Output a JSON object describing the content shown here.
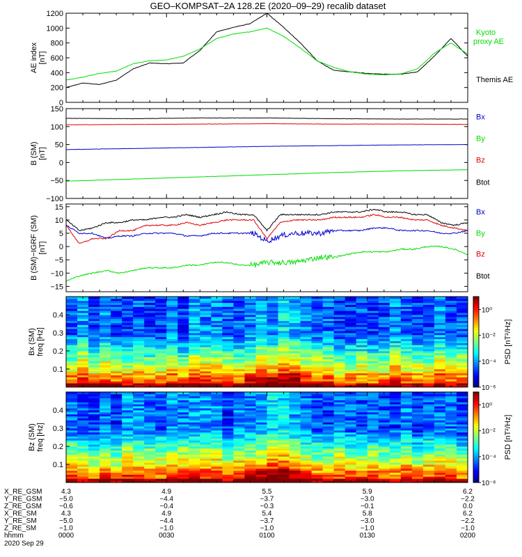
{
  "title": "GEO–KOMPSAT–2A 128.2E (2020–09–29) recalib dataset",
  "time_labels": [
    "0000",
    "0030",
    "0100",
    "0130",
    "0200"
  ],
  "date_label": "2020 Sep 29",
  "hhmm_label": "hhmm",
  "colors": {
    "black": "#000000",
    "green": "#00dd00",
    "blue": "#0000cc",
    "red": "#dd0000"
  },
  "chart_data": [
    {
      "type": "line",
      "ylabel": "AE index",
      "yunit": "[nT]",
      "ylim": [
        0,
        1200
      ],
      "yticks": [
        "0",
        "200",
        "400",
        "600",
        "800",
        "1000",
        "1200"
      ],
      "x": [
        0,
        5,
        10,
        15,
        20,
        25,
        30,
        35,
        40,
        45,
        50,
        55,
        60,
        65,
        70,
        75,
        80,
        85,
        90,
        95,
        100,
        105,
        110,
        115,
        120
      ],
      "series": [
        {
          "name": "Themis AE",
          "color": "#000000",
          "values": [
            200,
            260,
            240,
            300,
            450,
            530,
            520,
            530,
            700,
            950,
            1010,
            1060,
            1200,
            1010,
            800,
            560,
            430,
            410,
            390,
            380,
            380,
            410,
            620,
            860,
            620
          ]
        },
        {
          "name": "Kyoto proxy AE",
          "color": "#00dd00",
          "values": [
            300,
            340,
            390,
            420,
            520,
            560,
            570,
            620,
            720,
            860,
            920,
            950,
            1000,
            890,
            730,
            560,
            470,
            410,
            380,
            370,
            385,
            450,
            660,
            800,
            650
          ]
        }
      ],
      "legend": [
        {
          "text": "Kyoto",
          "color": "#00dd00"
        },
        {
          "text": "proxy AE",
          "color": "#00dd00"
        },
        {
          "text": "Themis AE",
          "color": "#000000"
        }
      ]
    },
    {
      "type": "line",
      "ylabel": "B (SM)",
      "yunit": "[nT]",
      "ylim": [
        -100,
        150
      ],
      "yticks": [
        "−100",
        "−50",
        "0",
        "50",
        "100",
        "150"
      ],
      "x": [
        0,
        20,
        40,
        60,
        80,
        100,
        120
      ],
      "series": [
        {
          "name": "Btot",
          "color": "#000000",
          "values": [
            123,
            122,
            124,
            124,
            122,
            121,
            121
          ]
        },
        {
          "name": "Bz",
          "color": "#dd0000",
          "values": [
            105,
            106,
            107,
            108,
            107,
            107,
            106
          ]
        },
        {
          "name": "By",
          "color": "#0000cc",
          "values": [
            36,
            39,
            42,
            45,
            47,
            49,
            50
          ]
        },
        {
          "name": "Bx",
          "color": "#00dd00",
          "values": [
            -52,
            -46,
            -40,
            -34,
            -28,
            -23,
            -20
          ]
        }
      ],
      "legend": [
        {
          "text": "Bx",
          "color": "#0000cc"
        },
        {
          "text": "By",
          "color": "#00dd00"
        },
        {
          "text": "Bz",
          "color": "#dd0000"
        },
        {
          "text": "Btot",
          "color": "#000000"
        }
      ]
    },
    {
      "type": "line",
      "ylabel": "B (SM)−IGRF (SM)",
      "yunit": "[nT]",
      "ylim": [
        -17,
        16
      ],
      "yticks": [
        "−15",
        "−10",
        "−5",
        "0",
        "5",
        "10",
        "15"
      ],
      "x": [
        0,
        4,
        8,
        12,
        16,
        20,
        24,
        28,
        32,
        36,
        40,
        44,
        48,
        52,
        56,
        60,
        64,
        68,
        72,
        76,
        80,
        84,
        88,
        92,
        96,
        100,
        104,
        108,
        112,
        116,
        120
      ],
      "series": [
        {
          "name": "Btot",
          "color": "#000000",
          "values": [
            10,
            6,
            7,
            9,
            9,
            10,
            10,
            11,
            11,
            12,
            11,
            12,
            13,
            12,
            12,
            6,
            12,
            12,
            12,
            12,
            13,
            13,
            13,
            14,
            13,
            13,
            12,
            12,
            9,
            8,
            9
          ]
        },
        {
          "name": "Bz",
          "color": "#dd0000",
          "values": [
            8,
            1,
            3,
            3,
            6,
            6,
            8,
            8,
            8,
            9,
            8,
            9,
            10,
            10,
            10,
            3,
            9,
            10,
            10,
            10,
            11,
            11,
            11,
            12,
            11,
            11,
            10,
            10,
            8,
            7,
            6
          ]
        },
        {
          "name": "By",
          "color": "#0000cc",
          "values": [
            8,
            5,
            5,
            3,
            4,
            4,
            5,
            5,
            5,
            4,
            4,
            5,
            5,
            5,
            5,
            2,
            4,
            5,
            5,
            5,
            6,
            6,
            6,
            7,
            7,
            6,
            6,
            6,
            5,
            5,
            6
          ]
        },
        {
          "name": "Bx",
          "color": "#00dd00",
          "values": [
            -13,
            -11,
            -10,
            -9,
            -10,
            -9,
            -8,
            -8,
            -8,
            -7,
            -7,
            -6,
            -6,
            -7,
            -7,
            -6,
            -6,
            -6,
            -5,
            -4,
            -4,
            -3,
            -2,
            -2,
            -2,
            -1,
            -1,
            0,
            0,
            -1,
            -3
          ]
        }
      ],
      "legend": [
        {
          "text": "Bx",
          "color": "#0000cc"
        },
        {
          "text": "By",
          "color": "#00dd00"
        },
        {
          "text": "Bz",
          "color": "#dd0000"
        },
        {
          "text": "Btot",
          "color": "#000000"
        }
      ]
    },
    {
      "type": "heatmap",
      "ylabel": "Bx (SM)",
      "yunit": "freq [Hz]",
      "ylim": [
        0,
        0.5
      ],
      "yticks": [
        "0.1",
        "0.2",
        "0.3",
        "0.4"
      ],
      "colorbar_label": "PSD [nT²/Hz]",
      "colorbar_ticks": [
        "10⁰",
        "10⁻²",
        "10⁻⁴",
        "10⁻⁶"
      ],
      "colorbar_range": [
        -6,
        1
      ]
    },
    {
      "type": "heatmap",
      "ylabel": "Bz (SM)",
      "yunit": "freq [Hz]",
      "ylim": [
        0,
        0.5
      ],
      "yticks": [
        "0.1",
        "0.2",
        "0.3",
        "0.4"
      ],
      "colorbar_label": "PSD [nT²/Hz]",
      "colorbar_ticks": [
        "10⁰",
        "10⁻²",
        "10⁻⁴",
        "10⁻⁶"
      ],
      "colorbar_range": [
        -6,
        1
      ]
    }
  ],
  "ephemeris": [
    {
      "label": "X_RE_GSM",
      "values": [
        "4.3",
        "4.9",
        "5.5",
        "5.9",
        "6.2"
      ]
    },
    {
      "label": "Y_RE_GSM",
      "values": [
        "−5.0",
        "−4.4",
        "−3.7",
        "−3.0",
        "−2.2"
      ]
    },
    {
      "label": "Z_RE_GSM",
      "values": [
        "−0.6",
        "−0.4",
        "−0.3",
        "−0.1",
        "0.0"
      ]
    },
    {
      "label": "X_RE_SM",
      "values": [
        "4.3",
        "4.9",
        "5.4",
        "5.8",
        "6.2"
      ]
    },
    {
      "label": "Y_RE_SM",
      "values": [
        "−5.0",
        "−4.4",
        "−3.7",
        "−3.0",
        "−2.2"
      ]
    },
    {
      "label": "Z_RE_SM",
      "values": [
        "−1.0",
        "−1.0",
        "−1.0",
        "−1.0",
        "−1.0"
      ]
    }
  ]
}
